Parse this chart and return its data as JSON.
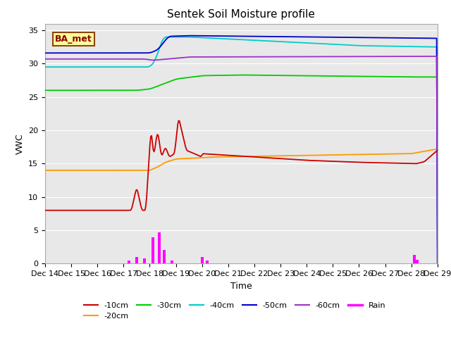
{
  "title": "Sentek Soil Moisture profile",
  "xlabel": "Time",
  "ylabel": "VWC",
  "legend_label": "BA_met",
  "ylim": [
    0,
    36
  ],
  "yticks": [
    0,
    5,
    10,
    15,
    20,
    25,
    30,
    35
  ],
  "x_labels": [
    "Dec 14",
    "Dec 15",
    "Dec 16",
    "Dec 17",
    "Dec 18",
    "Dec 19",
    "Dec 20",
    "Dec 21",
    "Dec 22",
    "Dec 23",
    "Dec 24",
    "Dec 25",
    "Dec 26",
    "Dec 27",
    "Dec 28",
    "Dec 29"
  ],
  "n_points": 480,
  "colors": {
    "10cm": "#cc0000",
    "20cm": "#ff9900",
    "30cm": "#00cc00",
    "40cm": "#00cccc",
    "50cm": "#0000cc",
    "60cm": "#9933cc",
    "rain": "#ff00ff"
  },
  "fig_bg": "#ffffff",
  "plot_bg": "#e8e8e8",
  "grid_color": "#ffffff",
  "title_fontsize": 11,
  "axis_fontsize": 9,
  "tick_fontsize": 8,
  "legend_fontsize": 8
}
